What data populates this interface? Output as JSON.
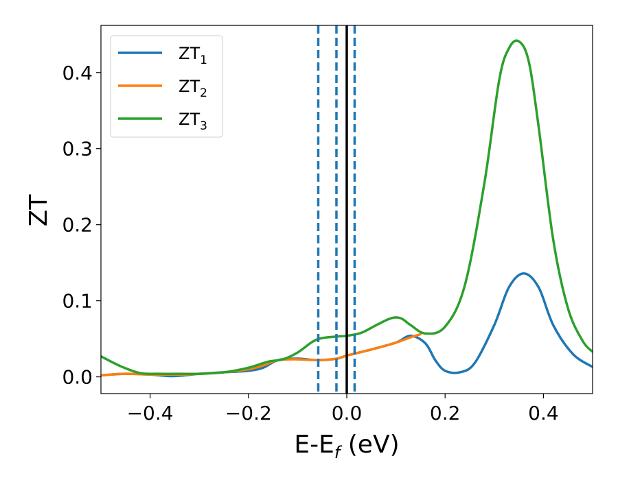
{
  "chart_data": {
    "type": "line",
    "title": "",
    "xlabel": "E-E",
    "xlabel_sub": "f",
    "xlabel_unit": " (eV)",
    "ylabel": "ZT",
    "xlim": [
      -0.5,
      0.5
    ],
    "ylim": [
      -0.022,
      0.462
    ],
    "x_ticks": [
      -0.4,
      -0.2,
      0.0,
      0.2,
      0.4
    ],
    "x_tick_labels": [
      "−0.4",
      "−0.2",
      "0.0",
      "0.2",
      "0.4"
    ],
    "y_ticks": [
      0.0,
      0.1,
      0.2,
      0.3,
      0.4
    ],
    "y_tick_labels": [
      "0.0",
      "0.1",
      "0.2",
      "0.3",
      "0.4"
    ],
    "grid": false,
    "legend_position": "top-left",
    "vlines": [
      {
        "x": -0.058,
        "style": "dashed",
        "color": "#1f77b4"
      },
      {
        "x": -0.021,
        "style": "dashed",
        "color": "#1f77b4"
      },
      {
        "x": 0.0,
        "style": "solid",
        "color": "#000000"
      },
      {
        "x": 0.016,
        "style": "dashed",
        "color": "#1f77b4"
      }
    ],
    "series": [
      {
        "name": "ZT",
        "name_sub": "1",
        "color": "#1f77b4",
        "x": [
          -0.5,
          -0.45,
          -0.4,
          -0.36,
          -0.33,
          -0.3,
          -0.25,
          -0.2,
          -0.17,
          -0.14,
          -0.1,
          -0.06,
          -0.02,
          0.0,
          0.05,
          0.1,
          0.13,
          0.16,
          0.18,
          0.2,
          0.23,
          0.26,
          0.3,
          0.33,
          0.36,
          0.39,
          0.42,
          0.46,
          0.5
        ],
        "y": [
          0.002,
          0.004,
          0.003,
          0.001,
          0.002,
          0.004,
          0.006,
          0.008,
          0.012,
          0.022,
          0.024,
          0.022,
          0.024,
          0.028,
          0.036,
          0.045,
          0.054,
          0.044,
          0.022,
          0.008,
          0.006,
          0.018,
          0.068,
          0.118,
          0.136,
          0.118,
          0.068,
          0.03,
          0.013
        ]
      },
      {
        "name": "ZT",
        "name_sub": "2",
        "color": "#ff7f0e",
        "x": [
          -0.5,
          -0.45,
          -0.4,
          -0.36,
          -0.33,
          -0.3,
          -0.25,
          -0.2,
          -0.17,
          -0.14,
          -0.1,
          -0.06,
          -0.02,
          0.0,
          0.05,
          0.1,
          0.13,
          0.15
        ],
        "y": [
          0.002,
          0.004,
          0.003,
          0.003,
          0.003,
          0.004,
          0.006,
          0.01,
          0.015,
          0.022,
          0.023,
          0.022,
          0.024,
          0.028,
          0.036,
          0.045,
          0.052,
          0.056
        ]
      },
      {
        "name": "ZT",
        "name_sub": "3",
        "color": "#2ca02c",
        "x": [
          -0.5,
          -0.46,
          -0.42,
          -0.38,
          -0.34,
          -0.3,
          -0.25,
          -0.2,
          -0.16,
          -0.13,
          -0.1,
          -0.07,
          -0.05,
          -0.02,
          0.0,
          0.03,
          0.06,
          0.09,
          0.11,
          0.13,
          0.16,
          0.2,
          0.24,
          0.28,
          0.31,
          0.33,
          0.35,
          0.37,
          0.39,
          0.42,
          0.45,
          0.48,
          0.5
        ],
        "y": [
          0.027,
          0.014,
          0.005,
          0.004,
          0.004,
          0.004,
          0.006,
          0.012,
          0.02,
          0.023,
          0.032,
          0.046,
          0.051,
          0.053,
          0.054,
          0.058,
          0.068,
          0.077,
          0.077,
          0.068,
          0.057,
          0.066,
          0.12,
          0.255,
          0.39,
          0.432,
          0.441,
          0.415,
          0.33,
          0.18,
          0.09,
          0.047,
          0.033
        ]
      }
    ]
  }
}
